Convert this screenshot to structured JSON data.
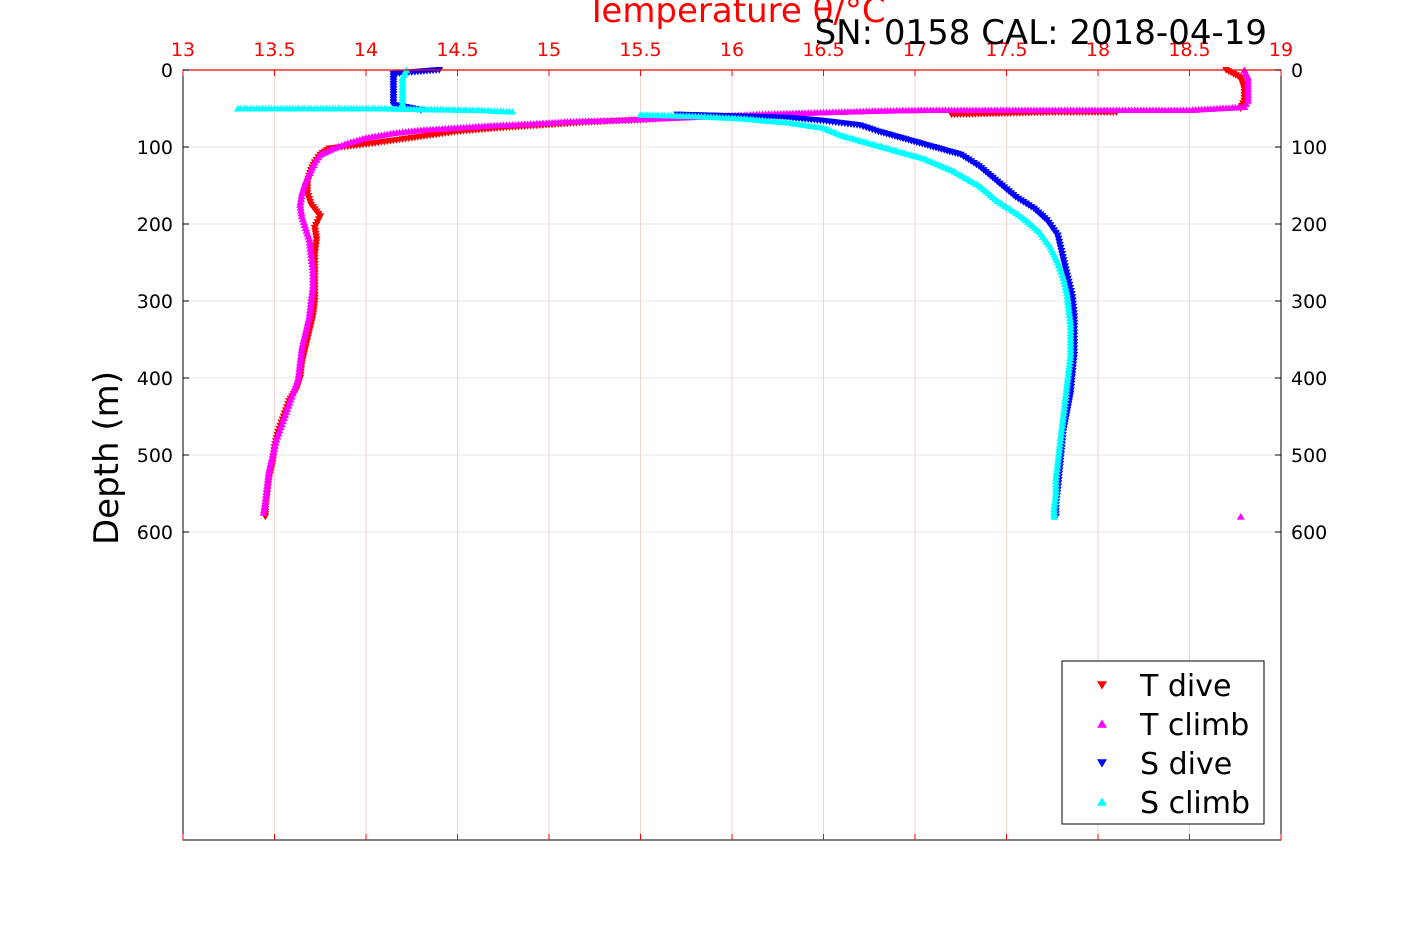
{
  "chart_data": {
    "type": "scatter",
    "title": "Temperature θ/°C",
    "subtitle": "SN: 0158  CAL: 2018-04-19",
    "xlabel": "Temperature θ/°C",
    "ylabel": "Depth (m)",
    "xlim": [
      13,
      19
    ],
    "ylim": [
      0,
      1000
    ],
    "y_reversed": true,
    "x_ticks": [
      "13",
      "13.5",
      "14",
      "14.5",
      "15",
      "15.5",
      "16",
      "16.5",
      "17",
      "17.5",
      "18",
      "18.5",
      "19"
    ],
    "y_ticks": [
      "0",
      "100",
      "200",
      "300",
      "400",
      "500",
      "600"
    ],
    "grid": true,
    "legend_position": "bottom-right",
    "colors": {
      "t_dive": "#ff0000",
      "t_climb": "#ff00ff",
      "s_dive": "#0000ff",
      "s_climb": "#00ffff",
      "axis_top": "#ff0000",
      "grid": "#dddddd"
    },
    "series": [
      {
        "name": "T dive",
        "marker": "triangle-down",
        "color": "#ff0000",
        "points": [
          [
            18.7,
            0
          ],
          [
            18.78,
            10
          ],
          [
            18.8,
            25
          ],
          [
            18.8,
            40
          ],
          [
            18.78,
            50
          ],
          [
            18.1,
            55
          ],
          [
            17.75,
            55
          ],
          [
            17.2,
            58
          ],
          [
            15.8,
            60
          ],
          [
            15.5,
            65
          ],
          [
            15.2,
            68
          ],
          [
            14.95,
            72
          ],
          [
            14.75,
            75
          ],
          [
            14.5,
            80
          ],
          [
            14.35,
            85
          ],
          [
            14.2,
            90
          ],
          [
            14.05,
            95
          ],
          [
            13.95,
            98
          ],
          [
            13.8,
            102
          ],
          [
            13.75,
            110
          ],
          [
            13.72,
            120
          ],
          [
            13.7,
            130
          ],
          [
            13.68,
            145
          ],
          [
            13.68,
            160
          ],
          [
            13.7,
            175
          ],
          [
            13.75,
            190
          ],
          [
            13.72,
            205
          ],
          [
            13.73,
            220
          ],
          [
            13.72,
            240
          ],
          [
            13.72,
            260
          ],
          [
            13.72,
            280
          ],
          [
            13.72,
            300
          ],
          [
            13.71,
            320
          ],
          [
            13.69,
            340
          ],
          [
            13.67,
            360
          ],
          [
            13.65,
            380
          ],
          [
            13.64,
            400
          ],
          [
            13.62,
            415
          ],
          [
            13.58,
            430
          ],
          [
            13.55,
            450
          ],
          [
            13.52,
            470
          ],
          [
            13.5,
            490
          ],
          [
            13.49,
            510
          ],
          [
            13.47,
            530
          ],
          [
            13.46,
            550
          ],
          [
            13.45,
            570
          ],
          [
            13.45,
            580
          ]
        ]
      },
      {
        "name": "T climb",
        "marker": "triangle-up",
        "color": "#ff00ff",
        "points": [
          [
            18.78,
            580
          ],
          [
            18.8,
            0
          ],
          [
            18.82,
            10
          ],
          [
            18.82,
            25
          ],
          [
            18.82,
            40
          ],
          [
            18.8,
            48
          ],
          [
            18.5,
            52
          ],
          [
            18.2,
            52
          ],
          [
            18.0,
            52
          ],
          [
            17.7,
            52
          ],
          [
            17.4,
            52
          ],
          [
            17.05,
            52
          ],
          [
            16.8,
            53
          ],
          [
            16.5,
            55
          ],
          [
            16.2,
            57
          ],
          [
            15.9,
            60
          ],
          [
            15.6,
            63
          ],
          [
            15.4,
            65
          ],
          [
            15.1,
            67
          ],
          [
            14.9,
            70
          ],
          [
            14.7,
            72
          ],
          [
            14.5,
            75
          ],
          [
            14.3,
            78
          ],
          [
            14.15,
            82
          ],
          [
            14.0,
            88
          ],
          [
            13.9,
            95
          ],
          [
            13.82,
            102
          ],
          [
            13.75,
            110
          ],
          [
            13.72,
            120
          ],
          [
            13.7,
            130
          ],
          [
            13.67,
            145
          ],
          [
            13.65,
            160
          ],
          [
            13.64,
            175
          ],
          [
            13.65,
            190
          ],
          [
            13.67,
            205
          ],
          [
            13.69,
            220
          ],
          [
            13.7,
            240
          ],
          [
            13.71,
            260
          ],
          [
            13.71,
            280
          ],
          [
            13.7,
            300
          ],
          [
            13.69,
            320
          ],
          [
            13.67,
            340
          ],
          [
            13.65,
            360
          ],
          [
            13.64,
            380
          ],
          [
            13.63,
            400
          ],
          [
            13.6,
            420
          ],
          [
            13.57,
            440
          ],
          [
            13.54,
            460
          ],
          [
            13.51,
            480
          ],
          [
            13.49,
            500
          ],
          [
            13.47,
            520
          ],
          [
            13.46,
            540
          ],
          [
            13.45,
            560
          ],
          [
            13.44,
            575
          ]
        ]
      },
      {
        "name": "S dive",
        "marker": "triangle-down",
        "color": "#0000ff",
        "points": [
          [
            14.4,
            0
          ],
          [
            14.15,
            5
          ],
          [
            14.15,
            15
          ],
          [
            14.15,
            25
          ],
          [
            14.15,
            35
          ],
          [
            14.15,
            45
          ],
          [
            14.3,
            52
          ],
          [
            15.7,
            58
          ],
          [
            16.0,
            60
          ],
          [
            16.3,
            62
          ],
          [
            16.5,
            66
          ],
          [
            16.7,
            72
          ],
          [
            16.8,
            80
          ],
          [
            16.95,
            90
          ],
          [
            17.1,
            100
          ],
          [
            17.25,
            110
          ],
          [
            17.35,
            125
          ],
          [
            17.45,
            145
          ],
          [
            17.55,
            165
          ],
          [
            17.65,
            180
          ],
          [
            17.72,
            195
          ],
          [
            17.78,
            215
          ],
          [
            17.8,
            235
          ],
          [
            17.82,
            255
          ],
          [
            17.84,
            275
          ],
          [
            17.86,
            295
          ],
          [
            17.87,
            320
          ],
          [
            17.87,
            345
          ],
          [
            17.87,
            370
          ],
          [
            17.86,
            395
          ],
          [
            17.85,
            420
          ],
          [
            17.83,
            445
          ],
          [
            17.81,
            470
          ],
          [
            17.8,
            495
          ],
          [
            17.79,
            520
          ],
          [
            17.78,
            545
          ],
          [
            17.77,
            565
          ],
          [
            17.77,
            580
          ]
        ]
      },
      {
        "name": "S climb",
        "marker": "triangle-up",
        "color": "#00ffff",
        "points": [
          [
            14.22,
            0
          ],
          [
            14.2,
            10
          ],
          [
            14.2,
            25
          ],
          [
            14.2,
            40
          ],
          [
            14.2,
            48
          ],
          [
            13.3,
            50
          ],
          [
            13.5,
            50
          ],
          [
            13.7,
            50
          ],
          [
            13.9,
            50
          ],
          [
            14.1,
            50
          ],
          [
            14.6,
            52
          ],
          [
            14.8,
            54
          ],
          [
            15.5,
            58
          ],
          [
            15.8,
            60
          ],
          [
            16.05,
            63
          ],
          [
            16.3,
            68
          ],
          [
            16.5,
            75
          ],
          [
            16.6,
            85
          ],
          [
            16.75,
            95
          ],
          [
            16.9,
            105
          ],
          [
            17.05,
            115
          ],
          [
            17.2,
            130
          ],
          [
            17.35,
            150
          ],
          [
            17.45,
            170
          ],
          [
            17.58,
            190
          ],
          [
            17.68,
            210
          ],
          [
            17.74,
            230
          ],
          [
            17.78,
            250
          ],
          [
            17.81,
            270
          ],
          [
            17.83,
            290
          ],
          [
            17.84,
            310
          ],
          [
            17.85,
            330
          ],
          [
            17.85,
            350
          ],
          [
            17.85,
            370
          ],
          [
            17.84,
            390
          ],
          [
            17.83,
            410
          ],
          [
            17.82,
            430
          ],
          [
            17.81,
            450
          ],
          [
            17.8,
            470
          ],
          [
            17.79,
            490
          ],
          [
            17.78,
            510
          ],
          [
            17.77,
            530
          ],
          [
            17.77,
            550
          ],
          [
            17.76,
            570
          ],
          [
            17.76,
            580
          ]
        ]
      }
    ]
  }
}
